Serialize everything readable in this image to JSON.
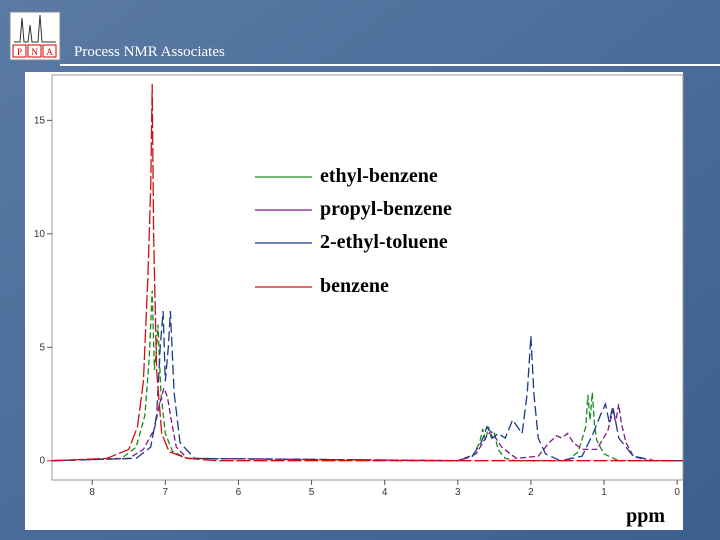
{
  "header": {
    "title": "Process NMR Associates",
    "logo_letters": [
      "P",
      "N",
      "A"
    ]
  },
  "chart_data": {
    "type": "line",
    "x_label": "ppm",
    "xlim": [
      8.55,
      -0.08
    ],
    "xticks": [
      8,
      7,
      6,
      5,
      4,
      3,
      2,
      1,
      0
    ],
    "ylim": [
      -0.85,
      17
    ],
    "yticks": [
      0,
      5,
      10,
      15
    ],
    "series": [
      {
        "name": "ethyl-benzene",
        "color": "#1a8a1a",
        "dash": "6,3",
        "x": [
          8.55,
          7.6,
          7.4,
          7.28,
          7.22,
          7.18,
          7.15,
          7.12,
          7.1,
          7.06,
          7.0,
          6.9,
          6.7,
          3.0,
          2.8,
          2.7,
          2.66,
          2.62,
          2.58,
          2.54,
          2.5,
          2.45,
          2.35,
          2.2,
          1.5,
          1.35,
          1.25,
          1.22,
          1.19,
          1.16,
          1.13,
          1.1,
          1.0,
          0.8,
          -0.08
        ],
        "values": [
          0,
          0.1,
          0.6,
          2,
          4.5,
          7.5,
          4,
          5,
          6,
          3,
          1.2,
          0.4,
          0.1,
          0,
          0.2,
          0.8,
          1.4,
          0.9,
          1.5,
          1.0,
          1.2,
          0.5,
          0.1,
          0,
          0,
          0.4,
          1.5,
          2.9,
          1.8,
          3.0,
          1.6,
          0.9,
          0.3,
          0,
          0
        ]
      },
      {
        "name": "propyl-benzene",
        "color": "#7a1a8a",
        "dash": "6,3",
        "x": [
          8.55,
          7.5,
          7.3,
          7.15,
          7.08,
          7.02,
          6.97,
          6.92,
          6.85,
          6.7,
          3.0,
          2.75,
          2.62,
          2.55,
          2.48,
          2.4,
          2.2,
          1.9,
          1.75,
          1.65,
          1.58,
          1.5,
          1.42,
          1.3,
          1.1,
          0.95,
          0.88,
          0.84,
          0.8,
          0.76,
          0.7,
          0.6,
          0.4,
          -0.08
        ],
        "values": [
          0,
          0.1,
          0.5,
          1.4,
          2.5,
          3.2,
          2.8,
          1.8,
          0.6,
          0.1,
          0,
          0.3,
          1.0,
          1.3,
          1.0,
          0.6,
          0.1,
          0.2,
          0.8,
          1.1,
          1.0,
          1.2,
          0.8,
          0.5,
          0.5,
          1.3,
          2.2,
          1.7,
          2.5,
          1.6,
          0.8,
          0.2,
          0,
          0
        ]
      },
      {
        "name": "2-ethyl-toluene",
        "color": "#1a3a8a",
        "dash": "10,4",
        "x": [
          8.55,
          7.4,
          7.2,
          7.12,
          7.07,
          7.03,
          7.0,
          6.96,
          6.93,
          6.88,
          6.8,
          6.6,
          3.0,
          2.8,
          2.68,
          2.6,
          2.52,
          2.45,
          2.35,
          2.25,
          2.12,
          2.05,
          2.0,
          1.96,
          1.9,
          1.8,
          1.6,
          1.3,
          1.15,
          1.05,
          0.98,
          0.93,
          0.88,
          0.8,
          0.6,
          0.3,
          -0.08
        ],
        "values": [
          0,
          0.1,
          0.6,
          2,
          5,
          6.6,
          3.5,
          5,
          6.6,
          3,
          0.8,
          0.1,
          0,
          0.2,
          0.8,
          1.5,
          1.0,
          1.2,
          1.0,
          1.8,
          1.2,
          3,
          5.5,
          3,
          1.0,
          0.3,
          0,
          0.2,
          1.2,
          2.0,
          2.5,
          1.7,
          2.4,
          1.0,
          0.2,
          0,
          0
        ]
      },
      {
        "name": "benzene",
        "color": "#d01010",
        "dash": "14,3",
        "x": [
          8.55,
          7.8,
          7.5,
          7.38,
          7.3,
          7.24,
          7.2,
          7.18,
          7.16,
          7.12,
          7.05,
          6.95,
          6.7,
          6.3,
          -0.08
        ],
        "values": [
          0,
          0.1,
          0.5,
          1.5,
          3.5,
          8,
          12,
          16.6,
          10,
          4,
          1.2,
          0.4,
          0.1,
          0,
          0
        ]
      }
    ]
  }
}
